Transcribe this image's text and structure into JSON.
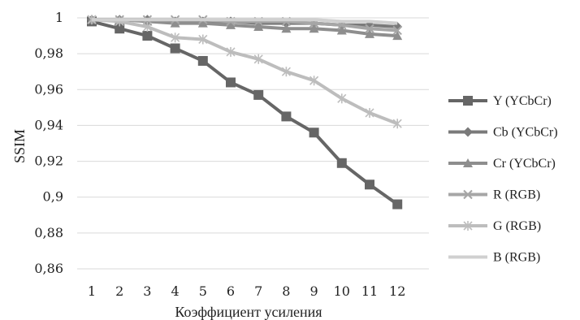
{
  "chart_data": {
    "type": "line",
    "xlabel": "Коэффициент усиления",
    "ylabel": "SSIM",
    "ylim": [
      0.86,
      1.0
    ],
    "grid": true,
    "legend_position": "right",
    "x": [
      1,
      2,
      3,
      4,
      5,
      6,
      7,
      8,
      9,
      10,
      11,
      12
    ],
    "x_tick_labels": [
      "1",
      "2",
      "3",
      "4",
      "5",
      "6",
      "7",
      "8",
      "9",
      "10",
      "11",
      "12"
    ],
    "y_ticks": [
      0.86,
      0.88,
      0.9,
      0.92,
      0.94,
      0.96,
      0.98,
      1.0
    ],
    "y_tick_labels": [
      "0,86",
      "0,88",
      "0,9",
      "0,92",
      "0,94",
      "0,96",
      "0,98",
      "1"
    ],
    "series": [
      {
        "name": "Y (YCbCr)",
        "marker": "square",
        "color": "#666666",
        "values": [
          0.998,
          0.994,
          0.99,
          0.983,
          0.976,
          0.964,
          0.957,
          0.945,
          0.936,
          0.919,
          0.907,
          0.896
        ]
      },
      {
        "name": "Cb (YCbCr)",
        "marker": "diamond",
        "color": "#7a7a7a",
        "values": [
          0.999,
          0.999,
          0.999,
          0.998,
          0.998,
          0.998,
          0.997,
          0.997,
          0.997,
          0.996,
          0.996,
          0.995
        ]
      },
      {
        "name": "Cr (YCbCr)",
        "marker": "triangle",
        "color": "#8e8e8e",
        "values": [
          0.999,
          0.999,
          0.998,
          0.997,
          0.997,
          0.996,
          0.995,
          0.994,
          0.994,
          0.993,
          0.991,
          0.99
        ]
      },
      {
        "name": "R (RGB)",
        "marker": "x",
        "color": "#a6a6a6",
        "values": [
          0.999,
          0.999,
          0.999,
          0.999,
          0.999,
          0.998,
          0.998,
          0.998,
          0.997,
          0.996,
          0.994,
          0.993
        ]
      },
      {
        "name": "G (RGB)",
        "marker": "star",
        "color": "#bdbdbd",
        "values": [
          0.999,
          0.998,
          0.995,
          0.989,
          0.988,
          0.981,
          0.977,
          0.97,
          0.965,
          0.955,
          0.947,
          0.941
        ]
      },
      {
        "name": "B (RGB)",
        "marker": "none",
        "color": "#d0d0d0",
        "values": [
          0.999,
          0.999,
          0.999,
          0.999,
          0.999,
          0.999,
          0.999,
          0.999,
          0.999,
          0.998,
          0.998,
          0.997
        ]
      }
    ]
  }
}
